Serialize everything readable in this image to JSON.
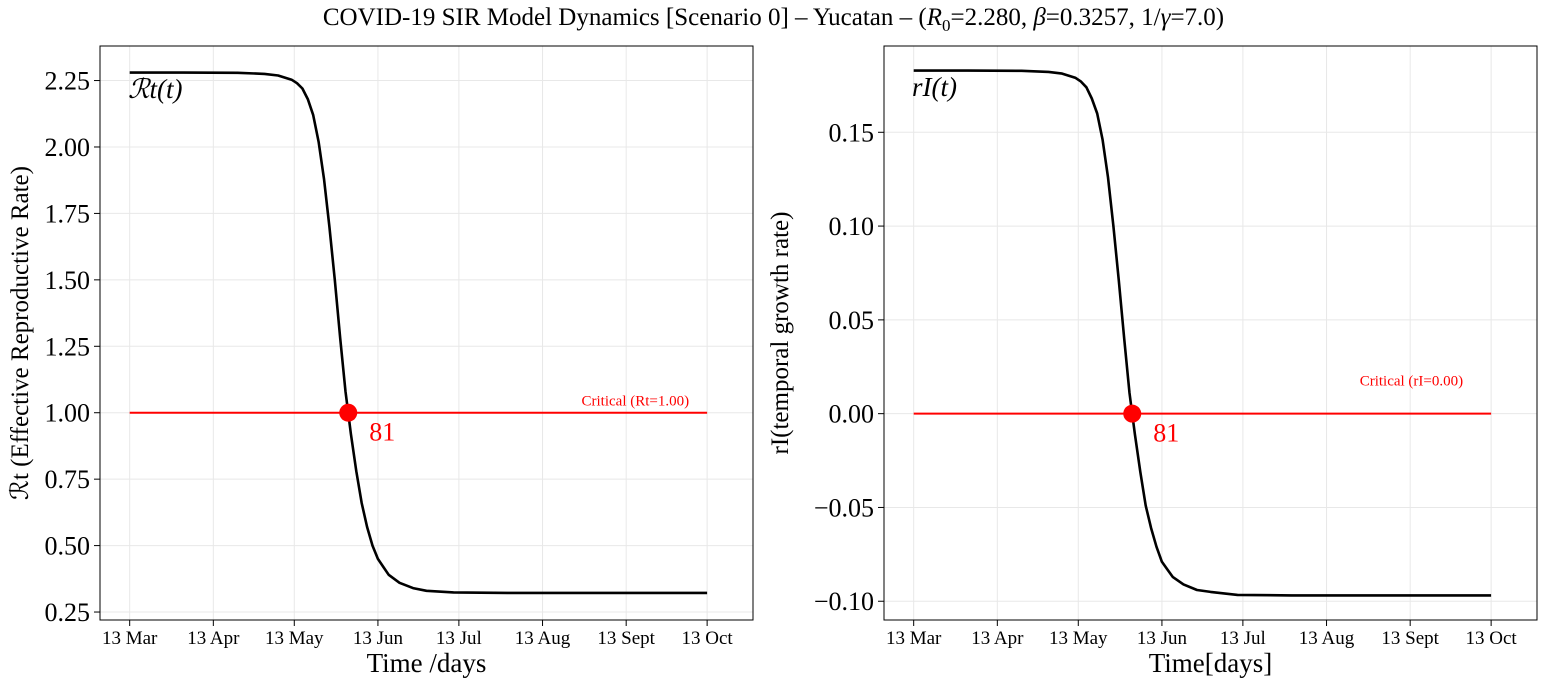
{
  "figure": {
    "title": "COVID-19 SIR Model Dynamics [Scenario 0] – Yucatan – (R₀=2.280, β=0.3257, 1/γ=7.0)"
  },
  "chart_data": [
    {
      "type": "line",
      "xlabel": "Time /days",
      "ylabel": "ℛt (Effective Reproductive Rate)",
      "x_tick_labels": [
        "13 Mar",
        "13 Apr",
        "13 May",
        "13 Jun",
        "13 Jul",
        "13 Aug",
        "13 Sept",
        "13 Oct"
      ],
      "x_tick_days": [
        0,
        31,
        61,
        92,
        122,
        153,
        184,
        214
      ],
      "y_ticks": [
        "0.25",
        "0.50",
        "0.75",
        "1.00",
        "1.25",
        "1.50",
        "1.75",
        "2.00",
        "2.25"
      ],
      "ylim": [
        0.22,
        2.38
      ],
      "xlim_days": [
        -11,
        231
      ],
      "grid": true,
      "series": [
        {
          "name": "ℛt(t)",
          "color": "#000000",
          "x_days": [
            0,
            20,
            40,
            50,
            55,
            60,
            62,
            64,
            66,
            68,
            70,
            72,
            74,
            76,
            78,
            80,
            81,
            82,
            84,
            86,
            88,
            90,
            92,
            94,
            96,
            100,
            105,
            110,
            120,
            140,
            170,
            214
          ],
          "values": [
            2.28,
            2.28,
            2.279,
            2.275,
            2.269,
            2.253,
            2.24,
            2.22,
            2.18,
            2.12,
            2.02,
            1.88,
            1.7,
            1.5,
            1.28,
            1.08,
            1.0,
            0.92,
            0.78,
            0.66,
            0.57,
            0.5,
            0.45,
            0.42,
            0.39,
            0.36,
            0.34,
            0.33,
            0.324,
            0.322,
            0.322,
            0.322
          ]
        }
      ],
      "critical_line": {
        "value": 1.0,
        "label": "Critical (Rt=1.00)",
        "color": "#ff0000",
        "x_days": [
          0,
          214
        ]
      },
      "crossing_point": {
        "x_day": 81,
        "value": 1.0,
        "label": "81",
        "color": "#ff0000"
      },
      "curve_label": "ℛt(t)"
    },
    {
      "type": "line",
      "xlabel": "Time[days]",
      "ylabel": "rI(temporal growth rate)",
      "x_tick_labels": [
        "13 Mar",
        "13 Apr",
        "13 May",
        "13 Jun",
        "13 Jul",
        "13 Aug",
        "13 Sept",
        "13 Oct"
      ],
      "x_tick_days": [
        0,
        31,
        61,
        92,
        122,
        153,
        184,
        214
      ],
      "y_ticks": [
        "−0.10",
        "−0.05",
        "0.00",
        "0.05",
        "0.10",
        "0.15"
      ],
      "y_tick_values": [
        -0.1,
        -0.05,
        0.0,
        0.05,
        0.1,
        0.15
      ],
      "ylim": [
        -0.11,
        0.196
      ],
      "xlim_days": [
        -11,
        231
      ],
      "grid": true,
      "series": [
        {
          "name": "rI(t)",
          "color": "#000000",
          "x_days": [
            0,
            20,
            40,
            50,
            55,
            60,
            62,
            64,
            66,
            68,
            70,
            72,
            74,
            76,
            78,
            80,
            81,
            82,
            84,
            86,
            88,
            90,
            92,
            94,
            96,
            100,
            105,
            110,
            120,
            140,
            170,
            214
          ],
          "values": [
            0.1829,
            0.1829,
            0.1828,
            0.1822,
            0.1813,
            0.179,
            0.177,
            0.174,
            0.168,
            0.16,
            0.146,
            0.126,
            0.1,
            0.071,
            0.04,
            0.011,
            0.0,
            -0.011,
            -0.031,
            -0.049,
            -0.061,
            -0.071,
            -0.079,
            -0.083,
            -0.087,
            -0.091,
            -0.094,
            -0.095,
            -0.0966,
            -0.0969,
            -0.0969,
            -0.0969
          ]
        }
      ],
      "critical_line": {
        "value": 0.0,
        "label": "Critical (rI=0.00)",
        "color": "#ff0000",
        "x_days": [
          0,
          214
        ]
      },
      "crossing_point": {
        "x_day": 81,
        "value": 0.0,
        "label": "81",
        "color": "#ff0000"
      },
      "curve_label": "rI(t)"
    }
  ]
}
